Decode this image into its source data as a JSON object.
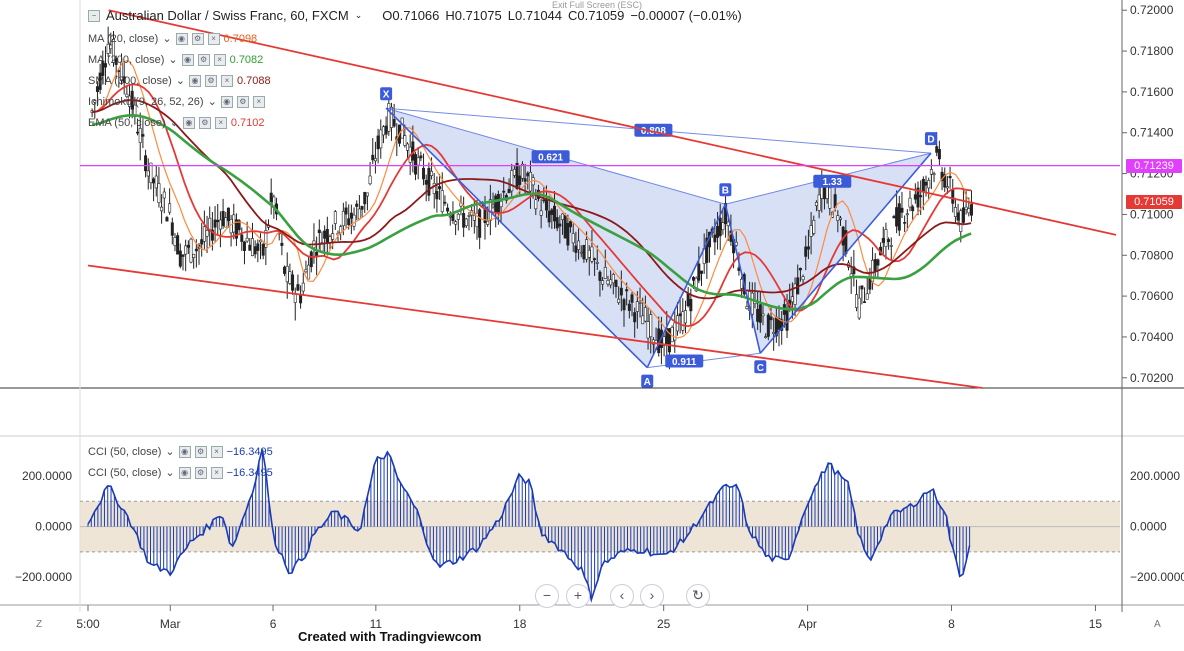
{
  "header": {
    "symbol": "Australian Dollar / Swiss Franc, 60, FXCM",
    "open": "O0.71066",
    "high": "H0.71075",
    "low": "L0.71044",
    "close": "C0.71059",
    "change": "−0.00007 (−0.01%)"
  },
  "exit_fullscreen": "Exit Full Screen (ESC)",
  "legend": [
    {
      "label": "MA (20, close)",
      "value": "0.7098",
      "color": "#e8601c"
    },
    {
      "label": "MA (200, close)",
      "value": "0.7082",
      "color": "#2e9e32"
    },
    {
      "label": "SMA (300, close)",
      "value": "0.7088",
      "color": "#8b1a1a"
    },
    {
      "label": "Ichimoku (9, 26, 52, 26)",
      "value": "",
      "color": "#1e88e5"
    },
    {
      "label": "EMA (50, close)",
      "value": "0.7102",
      "color": "#e53935"
    }
  ],
  "cci_legend": [
    {
      "label": "CCI (50, close)",
      "value": "−16.3495"
    },
    {
      "label": "CCI (50, close)",
      "value": "−16.3495"
    }
  ],
  "price_tags": [
    {
      "label": "0.71239",
      "value": 0.71239,
      "color": "#e040fb"
    },
    {
      "label": "0.71059",
      "value": 0.71059,
      "color": "#e53935"
    }
  ],
  "footer": "Created with Tradingviewcom",
  "nav": {
    "minus": "−",
    "plus": "+",
    "left": "‹",
    "right": "›",
    "reset": "↻"
  },
  "corner_left": "Z",
  "corner_right": "A",
  "colors": {
    "candle": "#222222",
    "channel": "#e53935",
    "pattern": "#3b5bdb",
    "pattern_fill": "#c9d6f2",
    "magenta_line": "#e040fb",
    "cci": "#1a3bb5",
    "cci_band": "#eadfcc"
  },
  "chart_data": [
    {
      "type": "candlestick",
      "title": "Australian Dollar / Swiss Franc, 60, FXCM",
      "ylim": [
        0.7015,
        0.7205
      ],
      "x_ticks": [
        {
          "label": "5:00",
          "t": 0
        },
        {
          "label": "Mar",
          "t": 4
        },
        {
          "label": "6",
          "t": 9
        },
        {
          "label": "11",
          "t": 14
        },
        {
          "label": "18",
          "t": 21
        },
        {
          "label": "25",
          "t": 28
        },
        {
          "label": "Apr",
          "t": 35
        },
        {
          "label": "8",
          "t": 42
        },
        {
          "label": "15",
          "t": 49
        }
      ],
      "y_ticks": [
        "0.72000",
        "0.71800",
        "0.71600",
        "0.71400",
        "0.71200",
        "0.71000",
        "0.70800",
        "0.70600",
        "0.70400",
        "0.70200"
      ],
      "y_tick_values": [
        0.72,
        0.718,
        0.716,
        0.714,
        0.712,
        0.71,
        0.708,
        0.706,
        0.704,
        0.702
      ],
      "close_path": [
        [
          0.2,
          0.715
        ],
        [
          1,
          0.7185
        ],
        [
          2,
          0.716
        ],
        [
          3,
          0.712
        ],
        [
          4,
          0.71
        ],
        [
          4.5,
          0.708
        ],
        [
          5.5,
          0.7085
        ],
        [
          6.5,
          0.71
        ],
        [
          7.5,
          0.709
        ],
        [
          8.5,
          0.708
        ],
        [
          9,
          0.711
        ],
        [
          9.6,
          0.707
        ],
        [
          10.3,
          0.706
        ],
        [
          11,
          0.7085
        ],
        [
          12,
          0.7095
        ],
        [
          13,
          0.71
        ],
        [
          13.6,
          0.711
        ],
        [
          14,
          0.713
        ],
        [
          14.6,
          0.7148
        ],
        [
          15.3,
          0.714
        ],
        [
          16,
          0.7125
        ],
        [
          17,
          0.711
        ],
        [
          18,
          0.71
        ],
        [
          19,
          0.7095
        ],
        [
          20,
          0.7108
        ],
        [
          21,
          0.712
        ],
        [
          21.5,
          0.7115
        ],
        [
          22,
          0.7105
        ],
        [
          23,
          0.7095
        ],
        [
          24,
          0.7085
        ],
        [
          25,
          0.707
        ],
        [
          26,
          0.706
        ],
        [
          27,
          0.705
        ],
        [
          28,
          0.7035
        ],
        [
          29,
          0.705
        ],
        [
          30,
          0.708
        ],
        [
          31,
          0.71
        ],
        [
          31.5,
          0.7085
        ],
        [
          32,
          0.706
        ],
        [
          33,
          0.7045
        ],
        [
          34,
          0.705
        ],
        [
          35,
          0.708
        ],
        [
          35.7,
          0.7115
        ],
        [
          36.5,
          0.71
        ],
        [
          37,
          0.708
        ],
        [
          37.5,
          0.7055
        ],
        [
          38.5,
          0.708
        ],
        [
          39.5,
          0.71
        ],
        [
          40.5,
          0.711
        ],
        [
          41.3,
          0.7128
        ],
        [
          42,
          0.711
        ],
        [
          42.5,
          0.7095
        ],
        [
          43,
          0.7106
        ]
      ],
      "series": [
        {
          "name": "MA (20, close)",
          "last": 0.7098
        },
        {
          "name": "MA (200, close)",
          "last": 0.7082
        },
        {
          "name": "SMA (300, close)",
          "last": 0.7088
        },
        {
          "name": "EMA (50, close)",
          "last": 0.7102
        }
      ],
      "pattern": {
        "points": [
          {
            "label": "X",
            "t": 14.5,
            "value": 0.7152
          },
          {
            "label": "A",
            "t": 27.2,
            "value": 0.7025
          },
          {
            "label": "B",
            "t": 31.0,
            "value": 0.7105
          },
          {
            "label": "C",
            "t": 32.7,
            "value": 0.7032
          },
          {
            "label": "D",
            "t": 41.0,
            "value": 0.713
          }
        ],
        "ratios": [
          {
            "label": "0.808",
            "t": 27.5,
            "value": 0.7141
          },
          {
            "label": "0.621",
            "t": 22.5,
            "value": 0.7128
          },
          {
            "label": "1.33",
            "t": 36.2,
            "value": 0.7116
          },
          {
            "label": "0.911",
            "t": 29.0,
            "value": 0.7028
          }
        ]
      },
      "channel": {
        "upper": [
          [
            1,
            0.72
          ],
          [
            50,
            0.709
          ]
        ],
        "lower": [
          [
            0,
            0.7075
          ],
          [
            43.5,
            0.7015
          ]
        ]
      },
      "resistance": 0.71239
    },
    {
      "type": "bar",
      "title": "CCI (50, close)",
      "ylim": [
        -290,
        350
      ],
      "y_ticks": [
        "200.0000",
        "0.0000",
        "−200.0000"
      ],
      "y_tick_values": [
        200,
        0,
        -200
      ],
      "band": [
        -100,
        100
      ],
      "last": -16.3495,
      "path": [
        [
          0,
          20
        ],
        [
          1,
          160
        ],
        [
          2,
          30
        ],
        [
          3,
          -150
        ],
        [
          4,
          -180
        ],
        [
          5,
          -60
        ],
        [
          6,
          10
        ],
        [
          6.5,
          60
        ],
        [
          7,
          -90
        ],
        [
          8,
          140
        ],
        [
          8.5,
          320
        ],
        [
          9,
          -40
        ],
        [
          9.8,
          -180
        ],
        [
          10.5,
          -120
        ],
        [
          11,
          -30
        ],
        [
          12,
          60
        ],
        [
          12.8,
          10
        ],
        [
          13.2,
          -20
        ],
        [
          14,
          260
        ],
        [
          14.6,
          290
        ],
        [
          15,
          200
        ],
        [
          16,
          60
        ],
        [
          16.5,
          -60
        ],
        [
          17,
          -160
        ],
        [
          18,
          -130
        ],
        [
          19,
          -80
        ],
        [
          20,
          30
        ],
        [
          21,
          200
        ],
        [
          21.5,
          170
        ],
        [
          22,
          -20
        ],
        [
          23,
          -90
        ],
        [
          24,
          -170
        ],
        [
          24.5,
          -280
        ],
        [
          25,
          -150
        ],
        [
          26,
          -100
        ],
        [
          27,
          -90
        ],
        [
          28,
          -120
        ],
        [
          29,
          -50
        ],
        [
          30,
          60
        ],
        [
          31,
          160
        ],
        [
          31.7,
          150
        ],
        [
          32,
          10
        ],
        [
          33,
          -120
        ],
        [
          34,
          -140
        ],
        [
          35,
          100
        ],
        [
          36,
          250
        ],
        [
          37,
          160
        ],
        [
          37.5,
          -40
        ],
        [
          38,
          -140
        ],
        [
          39,
          40
        ],
        [
          40,
          80
        ],
        [
          41,
          150
        ],
        [
          41.7,
          60
        ],
        [
          42,
          -80
        ],
        [
          42.5,
          -210
        ],
        [
          43,
          -16
        ]
      ]
    }
  ]
}
